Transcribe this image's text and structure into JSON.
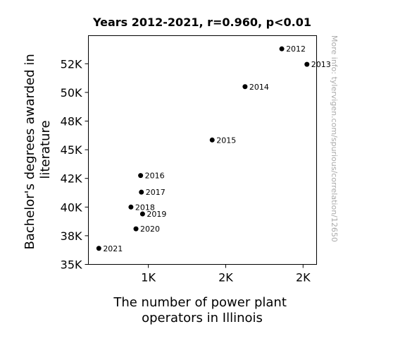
{
  "chart_data": {
    "type": "scatter",
    "title": "Years 2012-2021, r=0.960, p<0.01",
    "xlabel": [
      "The number of power plant",
      "operators in Illinois"
    ],
    "ylabel": [
      "Bachelor's degrees awarded in",
      "literature"
    ],
    "xlim": [
      1220,
      1810
    ],
    "ylim": [
      35000,
      54950
    ],
    "x_ticks": [
      {
        "value": 1375,
        "label": "1K"
      },
      {
        "value": 1575,
        "label": "2K"
      },
      {
        "value": 1775,
        "label": "2K"
      }
    ],
    "y_ticks": [
      {
        "value": 35000,
        "label": "35K"
      },
      {
        "value": 37500,
        "label": "38K"
      },
      {
        "value": 40000,
        "label": "40K"
      },
      {
        "value": 42500,
        "label": "42K"
      },
      {
        "value": 45000,
        "label": "45K"
      },
      {
        "value": 47500,
        "label": "48K"
      },
      {
        "value": 50000,
        "label": "50K"
      },
      {
        "value": 52500,
        "label": "52K"
      }
    ],
    "points": [
      {
        "label": "2012",
        "x": 1720,
        "y": 53800
      },
      {
        "label": "2013",
        "x": 1785,
        "y": 52450
      },
      {
        "label": "2014",
        "x": 1625,
        "y": 50500
      },
      {
        "label": "2015",
        "x": 1540,
        "y": 45850
      },
      {
        "label": "2016",
        "x": 1355,
        "y": 42750
      },
      {
        "label": "2017",
        "x": 1357,
        "y": 41300
      },
      {
        "label": "2018",
        "x": 1330,
        "y": 40000
      },
      {
        "label": "2019",
        "x": 1360,
        "y": 39400
      },
      {
        "label": "2020",
        "x": 1343,
        "y": 38100
      },
      {
        "label": "2021",
        "x": 1247,
        "y": 36400
      }
    ],
    "grid": false,
    "marker_color": "#000000"
  },
  "watermark": "More info: tylervigen.com/spurious/correlation/12650"
}
